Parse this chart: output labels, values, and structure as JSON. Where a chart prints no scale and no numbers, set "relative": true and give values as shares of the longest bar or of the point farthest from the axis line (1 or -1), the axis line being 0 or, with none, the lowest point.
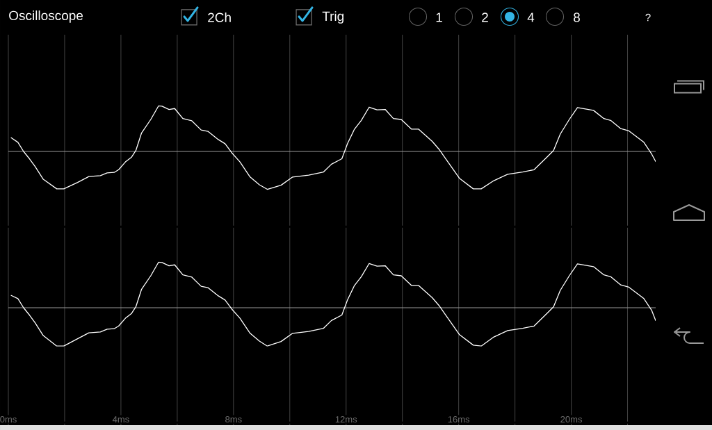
{
  "chart_data": [
    {
      "type": "line",
      "title": "Oscilloscope",
      "annotations": [
        "2Ch",
        "Trig",
        "1",
        "2",
        "4",
        "8",
        "?"
      ],
      "relative": true,
      "grid": "x",
      "tick_labels": false,
      "xlim": [
        0,
        23
      ],
      "xticks": [
        {
          "value": 0,
          "label": null
        },
        {
          "value": 2,
          "label": null
        },
        {
          "value": 4,
          "label": null
        },
        {
          "value": 6,
          "label": null
        },
        {
          "value": 8,
          "label": null
        },
        {
          "value": 10,
          "label": null
        },
        {
          "value": 12,
          "label": null
        },
        {
          "value": 14,
          "label": null
        },
        {
          "value": 16,
          "label": null
        },
        {
          "value": 18,
          "label": null
        },
        {
          "value": 20,
          "label": null
        },
        {
          "value": 22,
          "label": null
        }
      ],
      "x": [
        0.1,
        0.34,
        0.54,
        0.75,
        0.95,
        1.24,
        1.72,
        1.97,
        2.46,
        2.86,
        3.27,
        3.51,
        3.76,
        3.92,
        4.16,
        4.37,
        4.53,
        4.73,
        5.06,
        5.34,
        5.46,
        5.71,
        5.91,
        6.2,
        6.52,
        6.85,
        7.09,
        7.46,
        7.7,
        7.94,
        8.23,
        8.59,
        8.92,
        9.2,
        9.69,
        10.1,
        10.67,
        11.2,
        11.48,
        11.85,
        12.05,
        12.29,
        12.54,
        12.82,
        13.1,
        13.39,
        13.68,
        13.96,
        14.32,
        14.57,
        15.06,
        15.3,
        15.54,
        16.03,
        16.52,
        16.8,
        17.25,
        17.74,
        18.27,
        18.68,
        19.16,
        19.37,
        19.61,
        19.93,
        20.22,
        20.79,
        21.16,
        21.4,
        21.76,
        22.05,
        22.58,
        22.86,
        23.0
      ],
      "series": [
        {
          "color": "#ffffff",
          "values": [
            0.3,
            0.2,
            0.0,
            -0.16,
            -0.33,
            -0.61,
            -0.82,
            -0.82,
            -0.68,
            -0.55,
            -0.53,
            -0.47,
            -0.46,
            -0.4,
            -0.23,
            -0.13,
            0.02,
            0.4,
            0.7,
            1.0,
            0.99,
            0.92,
            0.94,
            0.72,
            0.67,
            0.47,
            0.44,
            0.26,
            0.17,
            -0.03,
            -0.23,
            -0.56,
            -0.73,
            -0.83,
            -0.74,
            -0.56,
            -0.52,
            -0.45,
            -0.28,
            -0.16,
            0.17,
            0.48,
            0.68,
            0.97,
            0.91,
            0.92,
            0.72,
            0.7,
            0.49,
            0.49,
            0.22,
            0.05,
            -0.16,
            -0.59,
            -0.82,
            -0.82,
            -0.64,
            -0.5,
            -0.45,
            -0.4,
            -0.11,
            0.02,
            0.38,
            0.7,
            0.96,
            0.9,
            0.72,
            0.68,
            0.5,
            0.45,
            0.2,
            -0.06,
            -0.22
          ]
        }
      ]
    },
    {
      "type": "line",
      "relative": true,
      "grid": "x",
      "tick_labels": "x",
      "xlim": [
        0,
        23
      ],
      "xticks": [
        {
          "value": 0,
          "label": "0ms"
        },
        {
          "value": 2,
          "label": null
        },
        {
          "value": 4,
          "label": "4ms"
        },
        {
          "value": 6,
          "label": null
        },
        {
          "value": 8,
          "label": "8ms"
        },
        {
          "value": 10,
          "label": null
        },
        {
          "value": 12,
          "label": "12ms"
        },
        {
          "value": 14,
          "label": null
        },
        {
          "value": 16,
          "label": "16ms"
        },
        {
          "value": 18,
          "label": null
        },
        {
          "value": 20,
          "label": "20ms"
        },
        {
          "value": 22,
          "label": null
        }
      ],
      "x": [
        0.1,
        0.34,
        0.54,
        0.75,
        0.95,
        1.24,
        1.72,
        1.97,
        2.46,
        2.86,
        3.27,
        3.51,
        3.76,
        3.92,
        4.16,
        4.37,
        4.53,
        4.73,
        5.06,
        5.34,
        5.46,
        5.71,
        5.91,
        6.2,
        6.52,
        6.85,
        7.09,
        7.46,
        7.7,
        7.94,
        8.23,
        8.59,
        8.92,
        9.2,
        9.69,
        10.1,
        10.67,
        11.2,
        11.48,
        11.85,
        12.05,
        12.29,
        12.54,
        12.82,
        13.1,
        13.39,
        13.68,
        13.96,
        14.32,
        14.57,
        15.06,
        15.3,
        15.54,
        16.03,
        16.52,
        16.8,
        17.25,
        17.74,
        18.27,
        18.68,
        19.16,
        19.37,
        19.61,
        19.93,
        20.22,
        20.79,
        21.16,
        21.4,
        21.76,
        22.05,
        22.58,
        22.86,
        23.0
      ],
      "series": [
        {
          "color": "#ffffff",
          "values": [
            0.27,
            0.2,
            0.0,
            -0.16,
            -0.33,
            -0.61,
            -0.84,
            -0.84,
            -0.68,
            -0.55,
            -0.53,
            -0.47,
            -0.46,
            -0.4,
            -0.23,
            -0.13,
            0.02,
            0.4,
            0.7,
            1.0,
            0.99,
            0.92,
            0.94,
            0.72,
            0.67,
            0.47,
            0.44,
            0.26,
            0.17,
            -0.03,
            -0.23,
            -0.56,
            -0.73,
            -0.84,
            -0.74,
            -0.56,
            -0.52,
            -0.45,
            -0.28,
            -0.16,
            0.17,
            0.48,
            0.68,
            0.97,
            0.91,
            0.92,
            0.72,
            0.7,
            0.49,
            0.49,
            0.22,
            0.05,
            -0.16,
            -0.59,
            -0.82,
            -0.84,
            -0.64,
            -0.5,
            -0.45,
            -0.4,
            -0.11,
            0.02,
            0.38,
            0.7,
            0.96,
            0.9,
            0.72,
            0.68,
            0.5,
            0.45,
            0.2,
            -0.06,
            -0.28
          ]
        }
      ]
    }
  ]
}
